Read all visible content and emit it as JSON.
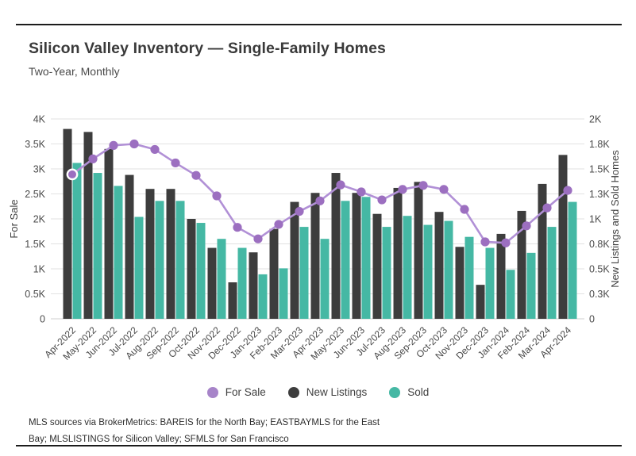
{
  "page": {
    "title": "Silicon Valley Inventory — Single-Family Homes",
    "subtitle": "Two-Year, Monthly",
    "footer_line1": "MLS sources via BrokerMetrics: BAREIS for the North Bay; EASTBAYMLS for the East",
    "footer_line2": "Bay; MLSLISTINGS for Silicon Valley; SFMLS for San Francisco"
  },
  "legend": [
    {
      "label": "For Sale",
      "color": "#a784c9"
    },
    {
      "label": "New Listings",
      "color": "#3d3d3d"
    },
    {
      "label": "Sold",
      "color": "#45b8a4"
    }
  ],
  "colors": {
    "line": "#b190d6",
    "dot": "#9c6fc0",
    "dot_ring": "#ffffff",
    "bar_new_listings": "#3d3d3d",
    "bar_sold": "#45b8a4",
    "gridline": "#e2e2e2",
    "baseline": "#cfcfcf",
    "tick_text": "#4a4a4a"
  },
  "chart_data": {
    "type": "bar",
    "subtype": "combo-bar-line",
    "grid": true,
    "legend_position": "bottom",
    "categories": [
      "Apr-2022",
      "May-2022",
      "Jun-2022",
      "Jul-2022",
      "Aug-2022",
      "Sep-2022",
      "Oct-2022",
      "Nov-2022",
      "Dec-2022",
      "Jan-2023",
      "Feb-2023",
      "Mar-2023",
      "Apr-2023",
      "May-2023",
      "Jun-2023",
      "Jul-2023",
      "Aug-2023",
      "Sep-2023",
      "Oct-2023",
      "Nov-2023",
      "Dec-2023",
      "Jan-2024",
      "Feb-2024",
      "Mar-2024",
      "Apr-2024"
    ],
    "series": [
      {
        "name": "For Sale",
        "type": "line",
        "axis": "left",
        "values": [
          2890,
          3200,
          3470,
          3500,
          3390,
          3120,
          2870,
          2460,
          1830,
          1600,
          1890,
          2150,
          2360,
          2680,
          2540,
          2380,
          2590,
          2670,
          2590,
          2190,
          1540,
          1520,
          1860,
          2220,
          2570
        ]
      },
      {
        "name": "New Listings",
        "type": "bar",
        "axis": "right",
        "values": [
          1900,
          1870,
          1700,
          1440,
          1300,
          1300,
          1000,
          710,
          365,
          665,
          900,
          1170,
          1260,
          1460,
          1260,
          1050,
          1310,
          1370,
          1070,
          720,
          340,
          850,
          1080,
          1350,
          1640
        ]
      },
      {
        "name": "Sold",
        "type": "bar",
        "axis": "right",
        "values": [
          1560,
          1460,
          1330,
          1020,
          1180,
          1180,
          960,
          800,
          710,
          445,
          505,
          920,
          800,
          1180,
          1220,
          920,
          1030,
          940,
          980,
          820,
          710,
          490,
          660,
          920,
          1170
        ]
      }
    ],
    "left_axis": {
      "label": "For Sale",
      "min": 0,
      "max": 4000,
      "tick_labels_bottom_up": [
        "0",
        "0.5K",
        "1K",
        "1.5K",
        "2K",
        "2.5K",
        "3K",
        "3.5K",
        "4K"
      ]
    },
    "right_axis": {
      "label": "New Listings and Sold Homes",
      "min": 0,
      "max": 2000,
      "tick_labels_bottom_up": [
        "0",
        "0.3K",
        "0.5K",
        "0.8K",
        "1K",
        "1.3K",
        "1.5K",
        "1.8K",
        "2K"
      ]
    }
  }
}
